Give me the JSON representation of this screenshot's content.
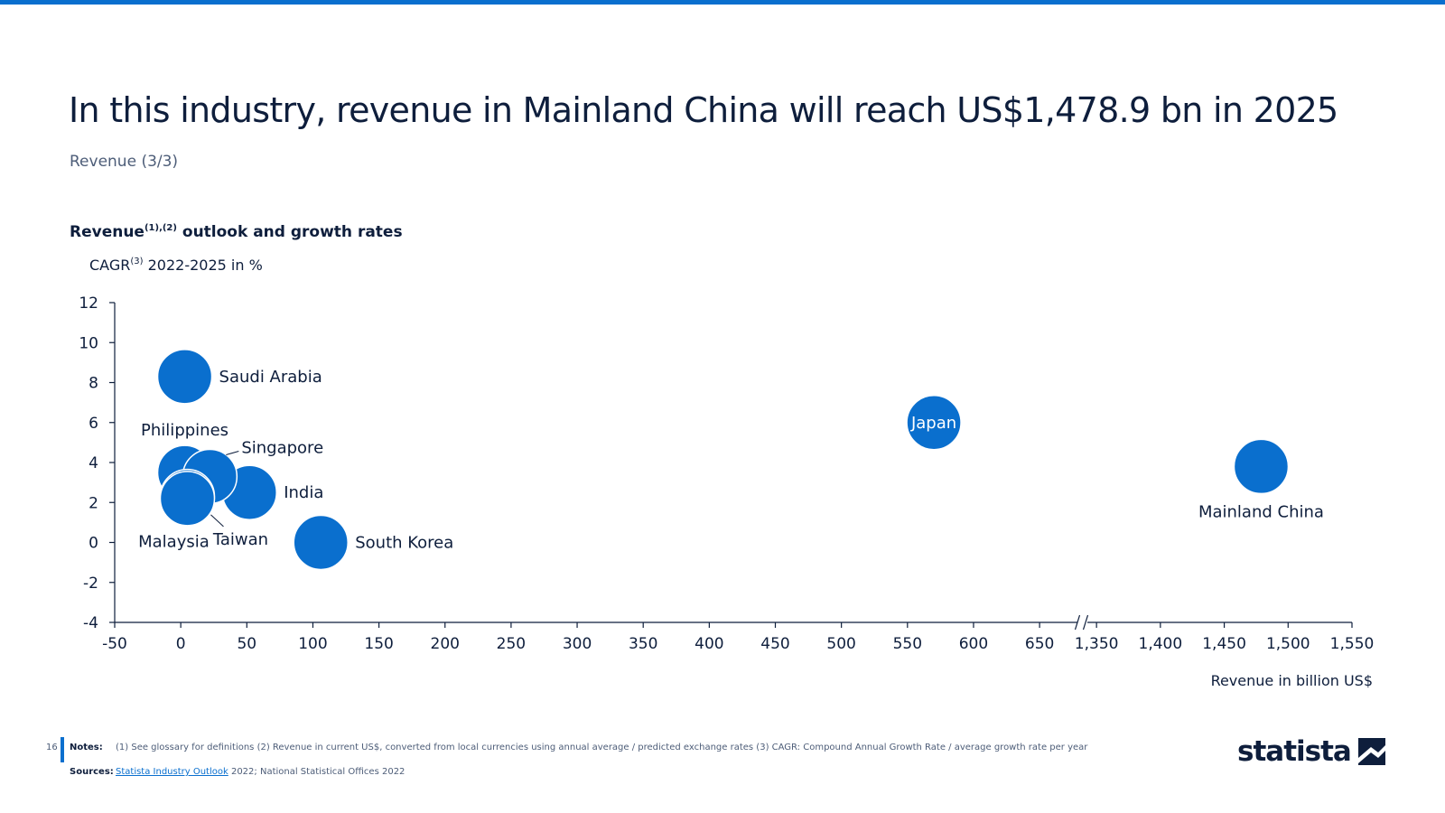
{
  "page": {
    "title": "In this industry, revenue in Mainland China will reach US$1,478.9 bn in 2025",
    "subtitle": "Revenue (3/3)",
    "page_number": "16"
  },
  "chart_heading": {
    "main": "Revenue",
    "sup": "(1),(2)",
    "rest": " outlook and growth rates"
  },
  "y_axis_title": {
    "main": "CAGR",
    "sup": "(3)",
    "rest": " 2022-2025 in %"
  },
  "x_axis_title": "Revenue in billion US$",
  "colors": {
    "accent": "#0a6fce",
    "bubble": "#0a6fce",
    "text_dark": "#0e1e3c",
    "text_muted": "#4d5d78"
  },
  "chart_data": {
    "type": "scatter",
    "title": "Revenue outlook and growth rates",
    "xlabel": "Revenue in billion US$",
    "ylabel": "CAGR 2022-2025 in %",
    "axis_break": [
      680,
      1340
    ],
    "xlim_low": [
      -50,
      680
    ],
    "xlim_high": [
      1340,
      1550
    ],
    "ylim": [
      -4,
      12
    ],
    "x_ticks_low": [
      -50,
      0,
      50,
      100,
      150,
      200,
      250,
      300,
      350,
      400,
      450,
      500,
      550,
      600,
      650
    ],
    "x_ticks_high": [
      1350,
      1400,
      1450,
      1500,
      1550
    ],
    "x_tick_labels_low": [
      "-50",
      "0",
      "50",
      "100",
      "150",
      "200",
      "250",
      "300",
      "350",
      "400",
      "450",
      "500",
      "550",
      "600",
      "650"
    ],
    "x_tick_labels_high": [
      "1,350",
      "1,400",
      "1,450",
      "1,500",
      "1,550"
    ],
    "y_ticks": [
      -4,
      -2,
      0,
      2,
      4,
      6,
      8,
      10,
      12
    ],
    "y_tick_labels": [
      "-4",
      "-2",
      "0",
      "2",
      "4",
      "6",
      "8",
      "10",
      "12"
    ],
    "grid": false,
    "points": [
      {
        "name": "Saudi Arabia",
        "x": 3,
        "y": 8.3
      },
      {
        "name": "Philippines",
        "x": 3,
        "y": 3.5
      },
      {
        "name": "Singapore",
        "x": 22,
        "y": 3.3
      },
      {
        "name": "India",
        "x": 52,
        "y": 2.5
      },
      {
        "name": "Malaysia",
        "x": 5,
        "y": 2.3
      },
      {
        "name": "Taiwan",
        "x": 5,
        "y": 2.2
      },
      {
        "name": "South Korea",
        "x": 106,
        "y": 0.0
      },
      {
        "name": "Japan",
        "x": 570,
        "y": 6.0
      },
      {
        "name": "Mainland China",
        "x": 1478.9,
        "y": 3.8
      }
    ]
  },
  "footer": {
    "notes_label": "Notes:",
    "notes_text": "(1) See glossary for definitions (2) Revenue in current US$, converted from local currencies using annual average / predicted exchange rates (3) CAGR: Compound Annual Growth Rate / average growth rate per year",
    "sources_label": "Sources:",
    "sources_link": "Statista Industry Outlook",
    "sources_text": " 2022; National Statistical Offices 2022",
    "logo_text": "statista"
  }
}
